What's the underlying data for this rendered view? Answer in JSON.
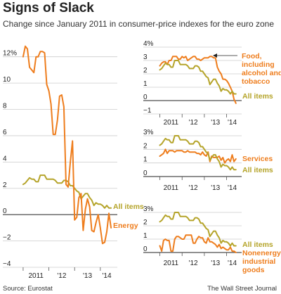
{
  "header": {
    "title": "Signs of Slack",
    "subtitle": "Change since January 2011 in consumer-price indexes for the euro zone"
  },
  "footer": {
    "source": "Source: Eurostat",
    "credit": "The Wall Street Journal"
  },
  "colors": {
    "all_items": "#b5a42a",
    "highlight": "#ee7d1d",
    "grid": "#cccccc",
    "zero": "#222222"
  },
  "chart_data": [
    {
      "type": "line",
      "title": "",
      "xlabel": "",
      "ylabel": "",
      "x_ticks": [
        "2011",
        "'12",
        "'13",
        "'14"
      ],
      "y_ticks": [
        "12%",
        "10",
        "8",
        "6",
        "4",
        "2",
        "0",
        "−2",
        "−4"
      ],
      "ylim": [
        -4,
        13
      ],
      "xlim": [
        2010.9,
        2014.55
      ],
      "grid": "horizontal",
      "series": [
        {
          "name": "All items",
          "color": "#b5a42a",
          "x": [
            2011.0,
            2011.083,
            2011.167,
            2011.25,
            2011.333,
            2011.417,
            2011.5,
            2011.583,
            2011.667,
            2011.75,
            2011.833,
            2011.917,
            2012.0,
            2012.083,
            2012.167,
            2012.25,
            2012.333,
            2012.417,
            2012.5,
            2012.583,
            2012.667,
            2012.75,
            2012.833,
            2012.917,
            2013.0,
            2013.083,
            2013.167,
            2013.25,
            2013.333,
            2013.417,
            2013.5,
            2013.583,
            2013.667,
            2013.75,
            2013.833,
            2013.917,
            2014.0,
            2014.083,
            2014.167,
            2014.25,
            2014.333,
            2014.417
          ],
          "values": [
            2.3,
            2.4,
            2.6,
            2.8,
            2.7,
            2.7,
            2.5,
            2.5,
            3.0,
            3.0,
            3.0,
            2.7,
            2.7,
            2.7,
            2.7,
            2.6,
            2.4,
            2.4,
            2.4,
            2.6,
            2.6,
            2.5,
            2.2,
            2.2,
            2.0,
            1.8,
            1.7,
            1.2,
            1.4,
            1.6,
            1.6,
            1.3,
            1.1,
            0.7,
            0.9,
            0.8,
            0.8,
            0.7,
            0.5,
            0.7,
            0.5,
            0.5
          ]
        },
        {
          "name": "Energy",
          "color": "#ee7d1d",
          "x": [
            2011.0,
            2011.083,
            2011.167,
            2011.25,
            2011.333,
            2011.417,
            2011.5,
            2011.583,
            2011.667,
            2011.75,
            2011.833,
            2011.917,
            2012.0,
            2012.083,
            2012.167,
            2012.25,
            2012.333,
            2012.417,
            2012.5,
            2012.583,
            2012.667,
            2012.75,
            2012.833,
            2012.917,
            2013.0,
            2013.083,
            2013.167,
            2013.25,
            2013.333,
            2013.417,
            2013.5,
            2013.583,
            2013.667,
            2013.75,
            2013.833,
            2013.917,
            2014.0,
            2014.083,
            2014.167,
            2014.25,
            2014.333,
            2014.417
          ],
          "values": [
            12.0,
            12.8,
            12.6,
            11.2,
            11.0,
            10.8,
            12.0,
            12.0,
            12.4,
            12.4,
            12.3,
            9.9,
            9.4,
            8.4,
            6.1,
            6.1,
            7.2,
            9.0,
            9.1,
            8.2,
            2.3,
            2.1,
            4.0,
            5.6,
            -0.4,
            -0.2,
            1.3,
            1.6,
            -1.2,
            0.4,
            1.2,
            0.6,
            -1.2,
            -1.3,
            -0.6,
            0.0,
            -1.0,
            -2.2,
            -2.1,
            -1.3,
            0.1,
            -1.0
          ]
        }
      ]
    },
    {
      "type": "line",
      "title": "",
      "xlabel": "",
      "ylabel": "",
      "x_ticks": [
        "2011",
        "'12",
        "'13",
        "'14"
      ],
      "y_ticks": [
        "4%",
        "3",
        "2",
        "1",
        "0",
        "−1"
      ],
      "ylim": [
        -1,
        4
      ],
      "grid": "horizontal",
      "series": [
        {
          "name": "Food, including alcohol and tobacco",
          "color": "#ee7d1d",
          "x": [
            2011.0,
            2011.083,
            2011.167,
            2011.25,
            2011.333,
            2011.417,
            2011.5,
            2011.583,
            2011.667,
            2011.75,
            2011.833,
            2011.917,
            2012.0,
            2012.083,
            2012.167,
            2012.25,
            2012.333,
            2012.417,
            2012.5,
            2012.583,
            2012.667,
            2012.75,
            2012.833,
            2012.917,
            2013.0,
            2013.083,
            2013.167,
            2013.25,
            2013.333,
            2013.417,
            2013.5,
            2013.583,
            2013.667,
            2013.75,
            2013.833,
            2013.917,
            2014.0,
            2014.083,
            2014.167,
            2014.25,
            2014.333,
            2014.417
          ],
          "values": [
            2.6,
            2.8,
            2.9,
            2.9,
            2.7,
            3.0,
            3.0,
            3.3,
            3.3,
            3.3,
            3.1,
            3.1,
            3.3,
            3.2,
            3.3,
            3.0,
            3.1,
            3.2,
            3.3,
            3.3,
            3.1,
            3.1,
            3.0,
            3.1,
            3.2,
            3.2,
            3.2,
            3.3,
            3.3,
            3.2,
            3.2,
            2.5,
            2.2,
            2.0,
            1.6,
            1.6,
            1.5,
            1.3,
            1.0,
            0.7,
            0.1,
            -0.2
          ]
        },
        {
          "name": "All items",
          "color": "#b5a42a",
          "x": [
            2011.0,
            2011.083,
            2011.167,
            2011.25,
            2011.333,
            2011.417,
            2011.5,
            2011.583,
            2011.667,
            2011.75,
            2011.833,
            2011.917,
            2012.0,
            2012.083,
            2012.167,
            2012.25,
            2012.333,
            2012.417,
            2012.5,
            2012.583,
            2012.667,
            2012.75,
            2012.833,
            2012.917,
            2013.0,
            2013.083,
            2013.167,
            2013.25,
            2013.333,
            2013.417,
            2013.5,
            2013.583,
            2013.667,
            2013.75,
            2013.833,
            2013.917,
            2014.0,
            2014.083,
            2014.167,
            2014.25,
            2014.333,
            2014.417
          ],
          "values": [
            2.3,
            2.4,
            2.6,
            2.8,
            2.7,
            2.7,
            2.5,
            2.5,
            3.0,
            3.0,
            3.0,
            2.7,
            2.7,
            2.7,
            2.7,
            2.6,
            2.4,
            2.4,
            2.4,
            2.6,
            2.6,
            2.5,
            2.2,
            2.2,
            2.0,
            1.8,
            1.7,
            1.2,
            1.4,
            1.6,
            1.6,
            1.3,
            1.1,
            0.7,
            0.9,
            0.8,
            0.8,
            0.7,
            0.5,
            0.7,
            0.5,
            0.5
          ]
        }
      ]
    },
    {
      "type": "line",
      "title": "",
      "xlabel": "",
      "ylabel": "",
      "x_ticks": [
        "2011",
        "'12",
        "'13",
        "'14"
      ],
      "y_ticks": [
        "3%",
        "2",
        "1",
        "0"
      ],
      "ylim": [
        0,
        3
      ],
      "grid": "horizontal",
      "series": [
        {
          "name": "Services",
          "color": "#ee7d1d",
          "x": [
            2011.0,
            2011.083,
            2011.167,
            2011.25,
            2011.333,
            2011.417,
            2011.5,
            2011.583,
            2011.667,
            2011.75,
            2011.833,
            2011.917,
            2012.0,
            2012.083,
            2012.167,
            2012.25,
            2012.333,
            2012.417,
            2012.5,
            2012.583,
            2012.667,
            2012.75,
            2012.833,
            2012.917,
            2013.0,
            2013.083,
            2013.167,
            2013.25,
            2013.333,
            2013.417,
            2013.5,
            2013.583,
            2013.667,
            2013.75,
            2013.833,
            2013.917,
            2014.0,
            2014.083,
            2014.167,
            2014.25,
            2014.333,
            2014.417
          ],
          "values": [
            1.5,
            1.6,
            1.7,
            2.0,
            1.7,
            1.9,
            1.9,
            1.9,
            1.8,
            1.9,
            1.9,
            1.9,
            1.9,
            1.8,
            1.8,
            1.9,
            1.8,
            1.8,
            1.8,
            1.8,
            1.7,
            1.7,
            1.6,
            1.8,
            1.6,
            1.5,
            1.8,
            1.1,
            1.5,
            1.4,
            1.4,
            1.4,
            1.5,
            1.2,
            1.4,
            1.0,
            1.2,
            1.3,
            1.1,
            1.6,
            1.1,
            1.3
          ]
        },
        {
          "name": "All items",
          "color": "#b5a42a",
          "x": [
            2011.0,
            2011.083,
            2011.167,
            2011.25,
            2011.333,
            2011.417,
            2011.5,
            2011.583,
            2011.667,
            2011.75,
            2011.833,
            2011.917,
            2012.0,
            2012.083,
            2012.167,
            2012.25,
            2012.333,
            2012.417,
            2012.5,
            2012.583,
            2012.667,
            2012.75,
            2012.833,
            2012.917,
            2013.0,
            2013.083,
            2013.167,
            2013.25,
            2013.333,
            2013.417,
            2013.5,
            2013.583,
            2013.667,
            2013.75,
            2013.833,
            2013.917,
            2014.0,
            2014.083,
            2014.167,
            2014.25,
            2014.333,
            2014.417
          ],
          "values": [
            2.3,
            2.4,
            2.6,
            2.8,
            2.7,
            2.7,
            2.5,
            2.5,
            3.0,
            3.0,
            3.0,
            2.7,
            2.7,
            2.7,
            2.7,
            2.6,
            2.4,
            2.4,
            2.4,
            2.6,
            2.6,
            2.5,
            2.2,
            2.2,
            2.0,
            1.8,
            1.7,
            1.2,
            1.4,
            1.6,
            1.6,
            1.3,
            1.1,
            0.7,
            0.9,
            0.8,
            0.8,
            0.7,
            0.5,
            0.7,
            0.5,
            0.5
          ]
        }
      ]
    },
    {
      "type": "line",
      "title": "",
      "xlabel": "",
      "ylabel": "",
      "x_ticks": [
        "2011",
        "'12",
        "'13",
        "'14"
      ],
      "y_ticks": [
        "3%",
        "2",
        "1",
        "0"
      ],
      "ylim": [
        0,
        3
      ],
      "grid": "horizontal",
      "series": [
        {
          "name": "All items",
          "color": "#b5a42a",
          "x": [
            2011.0,
            2011.083,
            2011.167,
            2011.25,
            2011.333,
            2011.417,
            2011.5,
            2011.583,
            2011.667,
            2011.75,
            2011.833,
            2011.917,
            2012.0,
            2012.083,
            2012.167,
            2012.25,
            2012.333,
            2012.417,
            2012.5,
            2012.583,
            2012.667,
            2012.75,
            2012.833,
            2012.917,
            2013.0,
            2013.083,
            2013.167,
            2013.25,
            2013.333,
            2013.417,
            2013.5,
            2013.583,
            2013.667,
            2013.75,
            2013.833,
            2013.917,
            2014.0,
            2014.083,
            2014.167,
            2014.25,
            2014.333,
            2014.417
          ],
          "values": [
            2.3,
            2.4,
            2.6,
            2.8,
            2.7,
            2.7,
            2.5,
            2.5,
            3.0,
            3.0,
            3.0,
            2.7,
            2.7,
            2.7,
            2.7,
            2.6,
            2.4,
            2.4,
            2.4,
            2.6,
            2.6,
            2.5,
            2.2,
            2.2,
            2.0,
            1.8,
            1.7,
            1.2,
            1.4,
            1.6,
            1.6,
            1.3,
            1.1,
            0.7,
            0.9,
            0.8,
            0.8,
            0.7,
            0.5,
            0.7,
            0.5,
            0.5
          ]
        },
        {
          "name": "Nonenergy industrial goods",
          "color": "#ee7d1d",
          "x": [
            2011.0,
            2011.083,
            2011.167,
            2011.25,
            2011.333,
            2011.417,
            2011.5,
            2011.583,
            2011.667,
            2011.75,
            2011.833,
            2011.917,
            2012.0,
            2012.083,
            2012.167,
            2012.25,
            2012.333,
            2012.417,
            2012.5,
            2012.583,
            2012.667,
            2012.75,
            2012.833,
            2012.917,
            2013.0,
            2013.083,
            2013.167,
            2013.25,
            2013.333,
            2013.417,
            2013.5,
            2013.583,
            2013.667,
            2013.75,
            2013.833,
            2013.917,
            2014.0,
            2014.083,
            2014.167,
            2014.25,
            2014.333,
            2014.417
          ],
          "values": [
            0.5,
            0.1,
            0.9,
            1.0,
            0.9,
            0.9,
            0.1,
            0.1,
            1.0,
            1.2,
            1.2,
            1.1,
            1.0,
            1.0,
            1.3,
            1.3,
            1.3,
            1.3,
            0.7,
            0.7,
            1.0,
            1.2,
            1.1,
            1.1,
            0.8,
            0.7,
            1.1,
            0.8,
            0.8,
            0.7,
            0.6,
            0.4,
            0.6,
            0.3,
            0.4,
            0.3,
            0.2,
            0.2,
            0.4,
            0.1,
            0.1,
            0.0
          ]
        }
      ]
    }
  ],
  "labels": {
    "main_all_items": "All items",
    "main_energy": "Energy",
    "food_line1": "Food,",
    "food_line2": "including",
    "food_line3": "alcohol and",
    "food_line4": "tobacco",
    "food_all_items": "All items",
    "services": "Services",
    "services_all_items": "All items",
    "goods_all_items": "All items",
    "goods_line1": "Nonenergy",
    "goods_line2": "industrial",
    "goods_line3": "goods"
  }
}
